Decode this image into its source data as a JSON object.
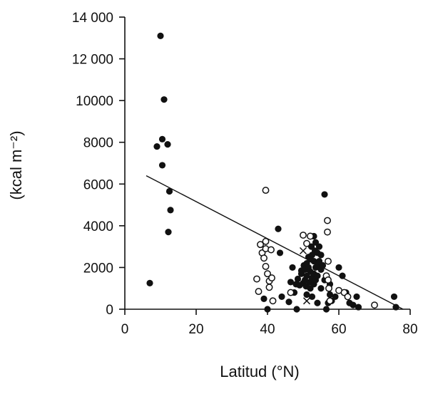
{
  "chart_data": {
    "type": "scatter",
    "title": "",
    "xlabel": "Latitud (°N)",
    "ylabel": "(kcal m⁻²)",
    "xlim": [
      0,
      80
    ],
    "ylim": [
      0,
      14000
    ],
    "x_ticks": [
      0,
      20,
      40,
      60,
      80
    ],
    "y_ticks": [
      0,
      2000,
      4000,
      6000,
      8000,
      10000,
      12000,
      14000
    ],
    "y_tick_labels": [
      "0",
      "2000",
      "4000",
      "6000",
      "8000",
      "10000",
      "12 000",
      "14 000"
    ],
    "grid": false,
    "legend": "none",
    "series": [
      {
        "marker": "filled-circle",
        "points": [
          [
            7,
            1250
          ],
          [
            9,
            7800
          ],
          [
            10,
            13100
          ],
          [
            10.5,
            6900
          ],
          [
            10.5,
            8150
          ],
          [
            11,
            10050
          ],
          [
            12,
            7900
          ],
          [
            12.2,
            3700
          ],
          [
            12.5,
            5650
          ],
          [
            12.8,
            4750
          ],
          [
            39,
            500
          ],
          [
            40,
            0
          ],
          [
            43,
            3850
          ],
          [
            43.5,
            2700
          ],
          [
            44,
            600
          ],
          [
            46,
            350
          ],
          [
            46.5,
            1300
          ],
          [
            47,
            2000
          ],
          [
            47.5,
            800
          ],
          [
            48,
            1200
          ],
          [
            48.2,
            0
          ],
          [
            48.5,
            1450
          ],
          [
            49,
            1150
          ],
          [
            49.5,
            1700
          ],
          [
            49.5,
            1850
          ],
          [
            50,
            1250
          ],
          [
            50.2,
            2100
          ],
          [
            50.5,
            1900
          ],
          [
            50.5,
            1400
          ],
          [
            50.8,
            1100
          ],
          [
            51,
            2200
          ],
          [
            51,
            1600
          ],
          [
            51,
            700
          ],
          [
            51.5,
            2500
          ],
          [
            51.5,
            2000
          ],
          [
            51.8,
            1300
          ],
          [
            52,
            2400
          ],
          [
            52,
            1800
          ],
          [
            52,
            1000
          ],
          [
            52.3,
            3000
          ],
          [
            52.5,
            2600
          ],
          [
            52.5,
            1500
          ],
          [
            52.5,
            600
          ],
          [
            53,
            3500
          ],
          [
            53,
            2300
          ],
          [
            53,
            1700
          ],
          [
            53,
            1200
          ],
          [
            53.3,
            2800
          ],
          [
            53.5,
            3200
          ],
          [
            53.5,
            2000
          ],
          [
            53.5,
            1400
          ],
          [
            54,
            2700
          ],
          [
            54,
            2100
          ],
          [
            54,
            1600
          ],
          [
            54,
            300
          ],
          [
            54.5,
            3000
          ],
          [
            54.5,
            2300
          ],
          [
            55,
            2600
          ],
          [
            55,
            1900
          ],
          [
            55,
            1000
          ],
          [
            55.5,
            2100
          ],
          [
            56,
            5500
          ],
          [
            56,
            1400
          ],
          [
            56.5,
            0
          ],
          [
            57,
            300
          ],
          [
            57.5,
            1200
          ],
          [
            57.5,
            700
          ],
          [
            58,
            400
          ],
          [
            59,
            600
          ],
          [
            60,
            2000
          ],
          [
            61,
            1600
          ],
          [
            62,
            800
          ],
          [
            63,
            300
          ],
          [
            64,
            200
          ],
          [
            65,
            600
          ],
          [
            65.5,
            100
          ],
          [
            75.5,
            600
          ],
          [
            76,
            100
          ]
        ]
      },
      {
        "marker": "open-circle",
        "points": [
          [
            37,
            1450
          ],
          [
            37.5,
            850
          ],
          [
            38,
            3100
          ],
          [
            38.5,
            2700
          ],
          [
            39,
            2450
          ],
          [
            39.5,
            5700
          ],
          [
            39.5,
            3250
          ],
          [
            39.5,
            2900
          ],
          [
            39.5,
            2050
          ],
          [
            40,
            1700
          ],
          [
            40.5,
            1350
          ],
          [
            40.5,
            1050
          ],
          [
            41,
            2850
          ],
          [
            41.2,
            1500
          ],
          [
            41.5,
            400
          ],
          [
            46.5,
            800
          ],
          [
            50,
            3550
          ],
          [
            51,
            3150
          ],
          [
            52,
            3500
          ],
          [
            56.5,
            1600
          ],
          [
            56.8,
            4250
          ],
          [
            56.8,
            3700
          ],
          [
            57,
            2300
          ],
          [
            57,
            1400
          ],
          [
            57.2,
            1000
          ],
          [
            57.5,
            400
          ],
          [
            60,
            900
          ],
          [
            61.5,
            800
          ],
          [
            62.5,
            600
          ],
          [
            70,
            200
          ]
        ]
      },
      {
        "marker": "cross",
        "points": [
          [
            50,
            2800
          ],
          [
            51,
            400
          ]
        ]
      }
    ],
    "regression_line": {
      "x": [
        6,
        78
      ],
      "y": [
        6400,
        0
      ]
    }
  }
}
